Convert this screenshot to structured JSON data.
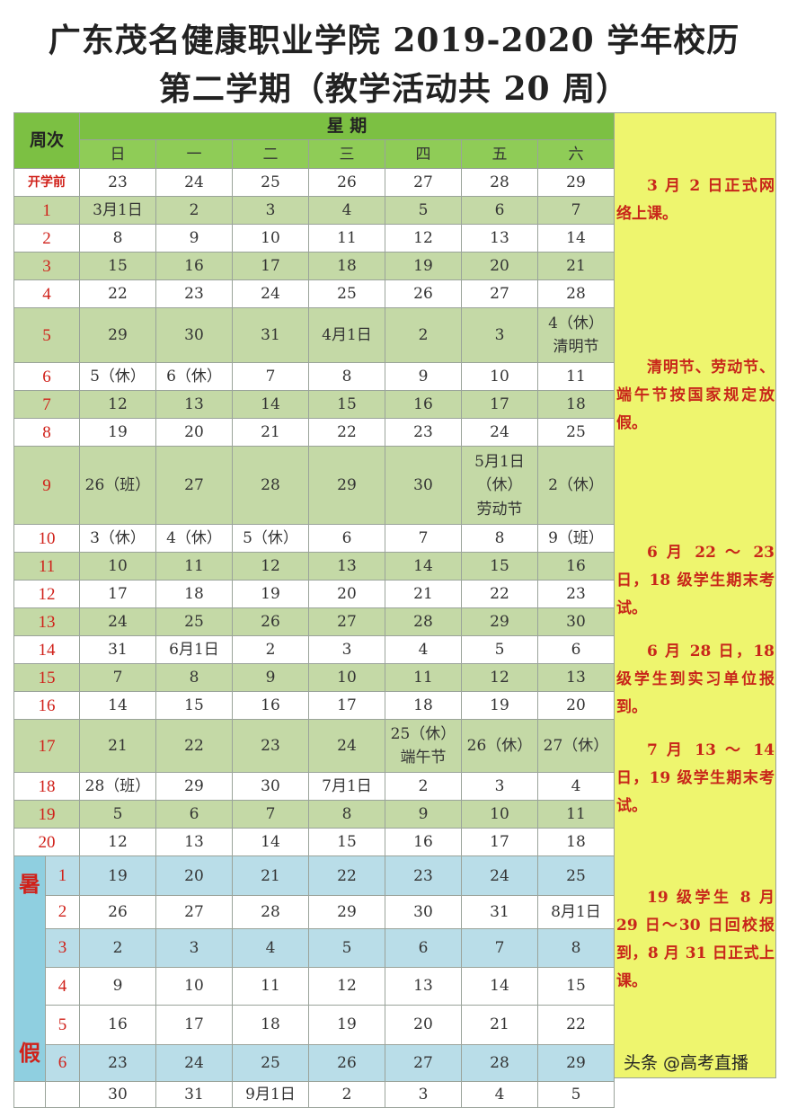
{
  "title": {
    "line1": "广东茂名健康职业学院 2019-2020 学年校历",
    "line2": "第二学期（教学活动共 20 周）"
  },
  "header": {
    "week_col": "周次",
    "weekday_group": "星 期",
    "weekdays": [
      "日",
      "一",
      "二",
      "三",
      "四",
      "五",
      "六"
    ]
  },
  "summer_label": "暑\n\n\n假",
  "rows": [
    {
      "week": "开学前",
      "days": [
        "23",
        "24",
        "25",
        "26",
        "27",
        "28",
        "29"
      ],
      "shade": "white"
    },
    {
      "week": "1",
      "days": [
        "3月1日",
        "2",
        "3",
        "4",
        "5",
        "6",
        "7"
      ],
      "shade": "green"
    },
    {
      "week": "2",
      "days": [
        "8",
        "9",
        "10",
        "11",
        "12",
        "13",
        "14"
      ],
      "shade": "white"
    },
    {
      "week": "3",
      "days": [
        "15",
        "16",
        "17",
        "18",
        "19",
        "20",
        "21"
      ],
      "shade": "green"
    },
    {
      "week": "4",
      "days": [
        "22",
        "23",
        "24",
        "25",
        "26",
        "27",
        "28"
      ],
      "shade": "white"
    },
    {
      "week": "5",
      "days": [
        "29",
        "30",
        "31",
        "4月1日",
        "2",
        "3",
        "4（休）\n清明节"
      ],
      "shade": "green"
    },
    {
      "week": "6",
      "days": [
        "5（休）",
        "6（休）",
        "7",
        "8",
        "9",
        "10",
        "11"
      ],
      "shade": "white"
    },
    {
      "week": "7",
      "days": [
        "12",
        "13",
        "14",
        "15",
        "16",
        "17",
        "18"
      ],
      "shade": "green"
    },
    {
      "week": "8",
      "days": [
        "19",
        "20",
        "21",
        "22",
        "23",
        "24",
        "25"
      ],
      "shade": "white"
    },
    {
      "week": "9",
      "days": [
        "26（班）",
        "27",
        "28",
        "29",
        "30",
        "5月1日\n（休）\n劳动节",
        "2（休）"
      ],
      "shade": "green"
    },
    {
      "week": "10",
      "days": [
        "3（休）",
        "4（休）",
        "5（休）",
        "6",
        "7",
        "8",
        "9（班）"
      ],
      "shade": "white"
    },
    {
      "week": "11",
      "days": [
        "10",
        "11",
        "12",
        "13",
        "14",
        "15",
        "16"
      ],
      "shade": "green"
    },
    {
      "week": "12",
      "days": [
        "17",
        "18",
        "19",
        "20",
        "21",
        "22",
        "23"
      ],
      "shade": "white"
    },
    {
      "week": "13",
      "days": [
        "24",
        "25",
        "26",
        "27",
        "28",
        "29",
        "30"
      ],
      "shade": "green"
    },
    {
      "week": "14",
      "days": [
        "31",
        "6月1日",
        "2",
        "3",
        "4",
        "5",
        "6"
      ],
      "shade": "white"
    },
    {
      "week": "15",
      "days": [
        "7",
        "8",
        "9",
        "10",
        "11",
        "12",
        "13"
      ],
      "shade": "green"
    },
    {
      "week": "16",
      "days": [
        "14",
        "15",
        "16",
        "17",
        "18",
        "19",
        "20"
      ],
      "shade": "white"
    },
    {
      "week": "17",
      "days": [
        "21",
        "22",
        "23",
        "24",
        "25（休）\n端午节",
        "26（休）",
        "27（休）"
      ],
      "shade": "green"
    },
    {
      "week": "18",
      "days": [
        "28（班）",
        "29",
        "30",
        "7月1日",
        "2",
        "3",
        "4"
      ],
      "shade": "white"
    },
    {
      "week": "19",
      "days": [
        "5",
        "6",
        "7",
        "8",
        "9",
        "10",
        "11"
      ],
      "shade": "green"
    },
    {
      "week": "20",
      "days": [
        "12",
        "13",
        "14",
        "15",
        "16",
        "17",
        "18"
      ],
      "shade": "white"
    }
  ],
  "summer_rows": [
    {
      "week": "1",
      "days": [
        "19",
        "20",
        "21",
        "22",
        "23",
        "24",
        "25"
      ],
      "shade": "blue"
    },
    {
      "week": "2",
      "days": [
        "26",
        "27",
        "28",
        "29",
        "30",
        "31",
        "8月1日"
      ],
      "shade": "white"
    },
    {
      "week": "3",
      "days": [
        "2",
        "3",
        "4",
        "5",
        "6",
        "7",
        "8"
      ],
      "shade": "blue"
    },
    {
      "week": "4",
      "days": [
        "9",
        "10",
        "11",
        "12",
        "13",
        "14",
        "15"
      ],
      "shade": "white"
    },
    {
      "week": "5",
      "days": [
        "16",
        "17",
        "18",
        "19",
        "20",
        "21",
        "22"
      ],
      "shade": "white"
    },
    {
      "week": "6",
      "days": [
        "23",
        "24",
        "25",
        "26",
        "27",
        "28",
        "29"
      ],
      "shade": "blue"
    }
  ],
  "final_row": {
    "week": "",
    "days": [
      "30",
      "31",
      "9月1日",
      "2",
      "3",
      "4",
      "5"
    ]
  },
  "notes": [
    "3 月 2 日正式网络上课。",
    "清明节、劳动节、端午节按国家规定放假。",
    "6 月 22 ～ 23 日，18 级学生期末考试。",
    "6 月 28 日，18 级学生到实习单位报到。",
    "7 月 13 ～ 14 日，19 级学生期末考试。",
    "19 级学生 8 月 29 日～30 日回校报到，8 月 31 日正式上课。"
  ],
  "watermark": "头条 @高考直播",
  "colors": {
    "header_green": "#7cc043",
    "row_green": "#c4d9a6",
    "summer_blue": "#b9dde8",
    "notes_yellow": "#eef56e",
    "accent_red": "#d0211a"
  }
}
